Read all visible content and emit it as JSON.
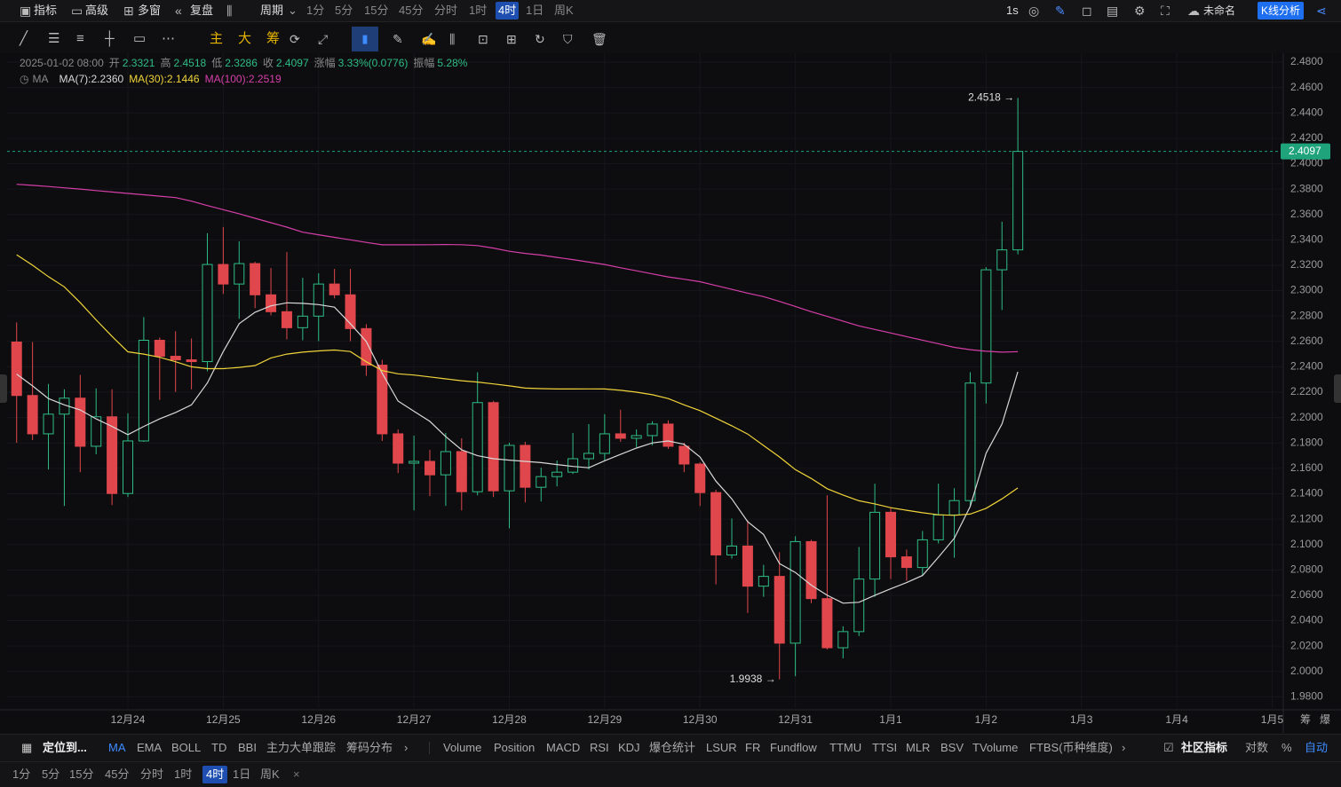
{
  "toolbar": {
    "left": [
      "指标",
      "高级",
      "多窗",
      "复盘"
    ],
    "period_label": "周期",
    "periods": [
      "1分",
      "5分",
      "15分",
      "45分",
      "分时",
      "1时",
      "4时",
      "1日",
      "周K"
    ],
    "selected_period": "4时",
    "refresh": "1s",
    "layout_name": "未命名",
    "analysis_button": "K线分析"
  },
  "drawing_bar": {
    "chips": [
      "主",
      "大",
      "筹"
    ]
  },
  "header": {
    "date": "2025-01-02 08:00",
    "fields": [
      {
        "label": "开",
        "value": "2.3321"
      },
      {
        "label": "高",
        "value": "2.4518"
      },
      {
        "label": "低",
        "value": "2.3286"
      },
      {
        "label": "收",
        "value": "2.4097"
      },
      {
        "label": "涨幅",
        "value": "3.33%(0.0776)"
      },
      {
        "label": "振幅",
        "value": "5.28%"
      }
    ],
    "ma_label": "MA"
  },
  "chart_data": {
    "type": "candlestick",
    "up_color": "#2ebd85",
    "down_color": "#e0474c",
    "grid": true,
    "open": [
      2.2595,
      2.2174,
      2.1872,
      2.2027,
      2.2153,
      2.1774,
      2.2006,
      2.1402,
      2.1816,
      2.2609,
      2.2483,
      2.2455,
      2.2441,
      2.3206,
      2.3052,
      2.3213,
      2.2967,
      2.2834,
      2.2708,
      2.2799,
      2.3052,
      2.2967,
      2.2701,
      2.2413,
      2.1872,
      2.1641,
      2.1655,
      2.1549,
      2.1732,
      2.1416,
      2.2118,
      2.1423,
      2.1781,
      2.1451,
      2.1535,
      2.157,
      2.1676,
      2.1718,
      2.1872,
      2.1837,
      2.1858,
      2.1949,
      2.1774,
      2.1634,
      2.1409,
      2.0918,
      2.0988,
      2.0672,
      2.0749,
      2.0223,
      2.1023,
      2.0574,
      2.0187,
      2.0314,
      2.0728,
      2.1254,
      2.0903,
      2.0819,
      2.1037,
      2.1233,
      2.1346,
      2.2272,
      2.3164,
      2.3321
    ],
    "high": [
      2.275,
      2.2595,
      2.2265,
      2.2223,
      2.2336,
      2.223,
      2.2223,
      2.2034,
      2.2792,
      2.263,
      2.268,
      2.2623,
      2.3452,
      2.3501,
      2.3389,
      2.3227,
      2.3178,
      2.3304,
      2.3101,
      2.3136,
      2.3171,
      2.3171,
      2.2736,
      2.2455,
      2.1907,
      2.1858,
      2.1746,
      2.1879,
      2.1837,
      2.2357,
      2.2132,
      2.1802,
      2.1809,
      2.1605,
      2.1662,
      2.1879,
      2.1949,
      2.2027,
      2.2062,
      2.1907,
      2.1971,
      2.1978,
      2.1802,
      2.1648,
      2.143,
      2.1205,
      2.1191,
      2.084,
      2.0939,
      2.1065,
      2.1037,
      2.1388,
      2.0356,
      2.0981,
      2.1479,
      2.129,
      2.096,
      2.1107,
      2.1479,
      2.1444,
      2.2357,
      2.3185,
      2.3543,
      2.4518
    ],
    "low": [
      2.1802,
      2.1823,
      2.1591,
      2.1304,
      2.157,
      2.1711,
      2.1311,
      2.1374,
      2.1809,
      2.2139,
      2.2202,
      2.2223,
      2.2364,
      2.2974,
      2.2778,
      2.2862,
      2.2806,
      2.2616,
      2.2609,
      2.2602,
      2.2939,
      2.2602,
      2.2329,
      2.1816,
      2.1563,
      2.1269,
      2.1381,
      2.1304,
      2.1269,
      2.1388,
      2.1374,
      2.1128,
      2.1332,
      2.1339,
      2.1458,
      2.1556,
      2.1591,
      2.1662,
      2.1809,
      2.1767,
      2.1781,
      2.1753,
      2.157,
      2.1304,
      2.0686,
      2.0889,
      2.0461,
      2.0588,
      1.9938,
      1.9963,
      2.0538,
      2.0173,
      2.0103,
      2.0279,
      2.0588,
      2.0728,
      2.0714,
      2.0756,
      2.1009,
      2.0896,
      2.13,
      2.2111,
      2.2848,
      2.3286
    ],
    "close": [
      2.2174,
      2.1872,
      2.2027,
      2.2153,
      2.1774,
      2.2006,
      2.1402,
      2.1816,
      2.2609,
      2.2483,
      2.2455,
      2.2441,
      2.3206,
      2.3052,
      2.3213,
      2.2967,
      2.2834,
      2.2708,
      2.2799,
      2.3052,
      2.2967,
      2.2701,
      2.2413,
      2.1872,
      2.1641,
      2.1655,
      2.1549,
      2.1732,
      2.1416,
      2.2118,
      2.1423,
      2.1781,
      2.1451,
      2.1535,
      2.157,
      2.1676,
      2.1718,
      2.1872,
      2.1837,
      2.1858,
      2.1949,
      2.1774,
      2.1634,
      2.1409,
      2.0918,
      2.0988,
      2.0672,
      2.0749,
      2.0223,
      2.1023,
      2.0574,
      2.0187,
      2.0314,
      2.0728,
      2.1254,
      2.0903,
      2.0819,
      2.1037,
      2.1233,
      2.1346,
      2.2272,
      2.3164,
      2.3321,
      2.4097
    ],
    "series": [
      {
        "name": "MA(7):2.2360",
        "color": "#d8d8d8",
        "values": [
          2.2343,
          2.225,
          2.215,
          2.21,
          2.206,
          2.199,
          2.193,
          2.1865,
          2.193,
          2.199,
          2.204,
          2.21,
          2.2273,
          2.252,
          2.274,
          2.283,
          2.288,
          2.2904,
          2.29,
          2.289,
          2.287,
          2.274,
          2.26,
          2.235,
          2.213,
          2.205,
          2.197,
          2.185,
          2.1746,
          2.17,
          2.1676,
          2.1665,
          2.1655,
          2.1645,
          2.163,
          2.1615,
          2.1605,
          2.166,
          2.171,
          2.176,
          2.18,
          2.1816,
          2.179,
          2.169,
          2.15,
          2.136,
          2.118,
          2.1079,
          2.085,
          2.078,
          2.068,
          2.06,
          2.0538,
          2.0545,
          2.06,
          2.0651,
          2.07,
          2.0756,
          2.09,
          2.105,
          2.13,
          2.172,
          2.195,
          2.236
        ]
      },
      {
        "name": "MA(30):2.1446",
        "color": "#f0d43a",
        "values": [
          2.3283,
          2.32,
          2.311,
          2.303,
          2.2905,
          2.277,
          2.264,
          2.2518,
          2.25,
          2.2475,
          2.244,
          2.24,
          2.2385,
          2.2385,
          2.2395,
          2.241,
          2.247,
          2.25,
          2.2515,
          2.2525,
          2.2532,
          2.252,
          2.244,
          2.237,
          2.2345,
          2.2335,
          2.232,
          2.2305,
          2.229,
          2.228,
          2.2265,
          2.225,
          2.2232,
          2.2228,
          2.2225,
          2.2225,
          2.2226,
          2.2225,
          2.2215,
          2.22,
          2.218,
          2.215,
          2.21,
          2.2055,
          2.1995,
          2.1935,
          2.187,
          2.178,
          2.169,
          2.159,
          2.152,
          2.144,
          2.139,
          2.1345,
          2.132,
          2.129,
          2.127,
          2.125,
          2.1234,
          2.123,
          2.124,
          2.1285,
          2.136,
          2.1446
        ]
      },
      {
        "name": "MA(100):2.2519",
        "color": "#d63fa8",
        "values": [
          2.3838,
          2.3829,
          2.382,
          2.381,
          2.38,
          2.3788,
          2.3777,
          2.3766,
          2.3755,
          2.3744,
          2.3733,
          2.3705,
          2.367,
          2.3638,
          2.3606,
          2.357,
          2.3535,
          2.35,
          2.346,
          2.344,
          2.342,
          2.34,
          2.338,
          2.3361,
          2.3361,
          2.3361,
          2.3362,
          2.3363,
          2.3362,
          2.3355,
          2.3335,
          2.331,
          2.3293,
          2.328,
          2.3262,
          2.3244,
          2.3225,
          2.3206,
          2.318,
          2.3156,
          2.3132,
          2.3108,
          2.309,
          2.307,
          2.304,
          2.301,
          2.298,
          2.2953,
          2.2915,
          2.2875,
          2.2834,
          2.2797,
          2.276,
          2.2722,
          2.2694,
          2.2666,
          2.2638,
          2.261,
          2.2582,
          2.2553,
          2.2535,
          2.2522,
          2.2515,
          2.2519
        ]
      }
    ],
    "last_price": {
      "value": 2.4097,
      "label": "2.4097",
      "color": "#1fa37a"
    },
    "annotations": [
      {
        "value": 2.4518,
        "label": "2.4518 →"
      },
      {
        "value": 1.9938,
        "label": "1.9938 →"
      }
    ],
    "xlim": [
      -0.6,
      79.7
    ],
    "xticks": [
      {
        "value": 7,
        "label": "12月24"
      },
      {
        "value": 13,
        "label": "12月25"
      },
      {
        "value": 19,
        "label": "12月26"
      },
      {
        "value": 25,
        "label": "12月27"
      },
      {
        "value": 31,
        "label": "12月28"
      },
      {
        "value": 37,
        "label": "12月29"
      },
      {
        "value": 43,
        "label": "12月30"
      },
      {
        "value": 49,
        "label": "12月31"
      },
      {
        "value": 55,
        "label": "1月1"
      },
      {
        "value": 61,
        "label": "1月2"
      },
      {
        "value": 67,
        "label": "1月3"
      },
      {
        "value": 73,
        "label": "1月4"
      },
      {
        "value": 79,
        "label": "1月5"
      }
    ],
    "ylim": [
      1.9698,
      2.487
    ],
    "yticks": [
      {
        "value": 2.48,
        "label": "2.4800"
      },
      {
        "value": 2.46,
        "label": "2.4600"
      },
      {
        "value": 2.44,
        "label": "2.4400"
      },
      {
        "value": 2.42,
        "label": "2.4200"
      },
      {
        "value": 2.4,
        "label": "2.4000"
      },
      {
        "value": 2.38,
        "label": "2.3800"
      },
      {
        "value": 2.36,
        "label": "2.3600"
      },
      {
        "value": 2.34,
        "label": "2.3400"
      },
      {
        "value": 2.32,
        "label": "2.3200"
      },
      {
        "value": 2.3,
        "label": "2.3000"
      },
      {
        "value": 2.28,
        "label": "2.2800"
      },
      {
        "value": 2.26,
        "label": "2.2600"
      },
      {
        "value": 2.24,
        "label": "2.2400"
      },
      {
        "value": 2.22,
        "label": "2.2200"
      },
      {
        "value": 2.2,
        "label": "2.2000"
      },
      {
        "value": 2.18,
        "label": "2.1800"
      },
      {
        "value": 2.16,
        "label": "2.1600"
      },
      {
        "value": 2.14,
        "label": "2.1400"
      },
      {
        "value": 2.12,
        "label": "2.1200"
      },
      {
        "value": 2.1,
        "label": "2.1000"
      },
      {
        "value": 2.08,
        "label": "2.0800"
      },
      {
        "value": 2.06,
        "label": "2.0600"
      },
      {
        "value": 2.04,
        "label": "2.0400"
      },
      {
        "value": 2.02,
        "label": "2.0200"
      },
      {
        "value": 2.0,
        "label": "2.0000"
      },
      {
        "value": 1.98,
        "label": "1.9800"
      }
    ],
    "axis_extra": [
      "筹",
      "爆"
    ]
  },
  "indicator_bar": {
    "locate": "定位到...",
    "main": [
      "MA",
      "EMA",
      "BOLL",
      "TD",
      "BBI",
      "主力大单跟踪",
      "筹码分布"
    ],
    "sub": [
      "Volume",
      "Position",
      "MACD",
      "RSI",
      "KDJ",
      "爆仓统计",
      "LSUR",
      "FR",
      "Fundflow",
      "TTMU",
      "TTSI",
      "MLR",
      "BSV",
      "TVolume",
      "FTBS(币种维度)"
    ],
    "community": "社区指标",
    "right": [
      "对数",
      "%",
      "自动"
    ]
  },
  "bottom_periods": {
    "items": [
      "1分",
      "5分",
      "15分",
      "45分",
      "分时",
      "1时",
      "4时",
      "1日",
      "周K"
    ],
    "close": "×"
  }
}
